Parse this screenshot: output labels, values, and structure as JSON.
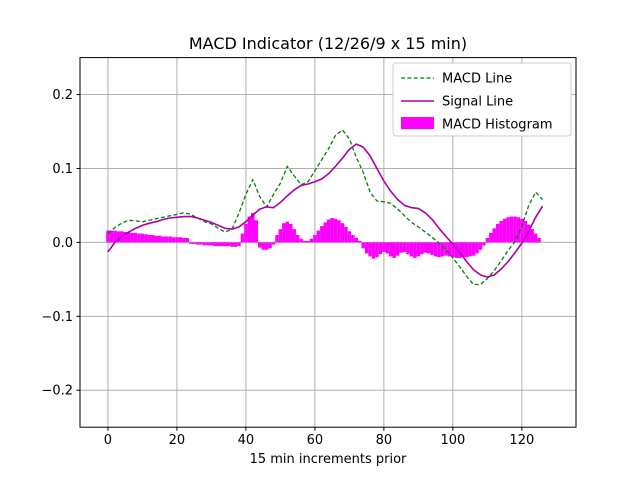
{
  "title": "MACD Indicator (12/26/9 x 15 min)",
  "xlabel": "15 min increments prior",
  "legend": {
    "items": [
      {
        "label": "MACD Line",
        "type": "dashed-line",
        "color": "#008000"
      },
      {
        "label": "Signal Line",
        "type": "solid-line",
        "color": "#aa00aa"
      },
      {
        "label": "MACD Histogram",
        "type": "patch",
        "color": "#ff00ff"
      }
    ]
  },
  "colors": {
    "macd_line": "#008000",
    "signal_line": "#aa00aa",
    "histogram": "#ff00ff",
    "grid": "#b0b0b0",
    "spine": "#000000",
    "background": "#ffffff",
    "legend_border": "#cccccc"
  },
  "chart_data": {
    "type": "line+bar",
    "title": "MACD Indicator (12/26/9 x 15 min)",
    "xlabel": "15 min increments prior",
    "ylabel": "",
    "grid": true,
    "legend_position": "upper right",
    "xlim": [
      -8.1,
      135.7
    ],
    "ylim": [
      -0.25,
      0.25
    ],
    "xticks": [
      0,
      20,
      40,
      60,
      80,
      100,
      120
    ],
    "yticks": [
      -0.2,
      -0.1,
      0.0,
      0.1,
      0.2
    ],
    "series": [
      {
        "name": "MACD Line",
        "style": "dashed",
        "color": "#008000",
        "x_start": 0,
        "x_step": 2,
        "values": [
          0.012,
          0.02,
          0.026,
          0.03,
          0.029,
          0.028,
          0.03,
          0.032,
          0.034,
          0.036,
          0.038,
          0.04,
          0.038,
          0.033,
          0.028,
          0.025,
          0.019,
          0.014,
          0.018,
          0.04,
          0.065,
          0.085,
          0.062,
          0.048,
          0.065,
          0.08,
          0.103,
          0.09,
          0.078,
          0.082,
          0.097,
          0.112,
          0.127,
          0.145,
          0.152,
          0.14,
          0.115,
          0.095,
          0.068,
          0.056,
          0.055,
          0.053,
          0.045,
          0.036,
          0.027,
          0.021,
          0.014,
          0.007,
          -0.001,
          -0.01,
          -0.021,
          -0.033,
          -0.046,
          -0.057,
          -0.057,
          -0.049,
          -0.038,
          -0.025,
          -0.011,
          0.001,
          0.022,
          0.05,
          0.068,
          0.058
        ]
      },
      {
        "name": "Signal Line",
        "style": "solid",
        "color": "#aa00aa",
        "x_start": 0,
        "x_step": 2,
        "values": [
          -0.013,
          0.0,
          0.008,
          0.014,
          0.019,
          0.023,
          0.026,
          0.028,
          0.031,
          0.033,
          0.034,
          0.035,
          0.035,
          0.033,
          0.03,
          0.027,
          0.023,
          0.019,
          0.018,
          0.021,
          0.028,
          0.037,
          0.045,
          0.048,
          0.047,
          0.054,
          0.063,
          0.071,
          0.077,
          0.079,
          0.082,
          0.086,
          0.093,
          0.103,
          0.114,
          0.126,
          0.133,
          0.129,
          0.117,
          0.1,
          0.083,
          0.069,
          0.058,
          0.05,
          0.047,
          0.046,
          0.04,
          0.031,
          0.019,
          0.008,
          -0.002,
          -0.014,
          -0.026,
          -0.037,
          -0.044,
          -0.047,
          -0.044,
          -0.036,
          -0.026,
          -0.014,
          -0.001,
          0.015,
          0.034,
          0.049
        ]
      }
    ],
    "histogram": {
      "name": "MACD Histogram",
      "color": "#ff00ff",
      "x_start": 0,
      "x_step": 1,
      "bar_width": 1,
      "values": [
        0.016,
        0.016,
        0.016,
        0.015,
        0.015,
        0.014,
        0.014,
        0.013,
        0.013,
        0.012,
        0.012,
        0.011,
        0.01,
        0.01,
        0.009,
        0.009,
        0.008,
        0.008,
        0.008,
        0.007,
        0.007,
        0.007,
        0.006,
        0.006,
        -0.002,
        -0.002,
        -0.003,
        -0.003,
        -0.004,
        -0.004,
        -0.004,
        -0.005,
        -0.005,
        -0.005,
        -0.005,
        -0.005,
        -0.006,
        -0.006,
        -0.005,
        0.012,
        0.025,
        0.035,
        0.04,
        0.03,
        -0.007,
        -0.01,
        -0.01,
        -0.008,
        -0.003,
        0.01,
        0.018,
        0.026,
        0.028,
        0.025,
        0.018,
        0.01,
        0.005,
        0.002,
        0.002,
        0.005,
        0.01,
        0.016,
        0.022,
        0.027,
        0.031,
        0.033,
        0.032,
        0.03,
        0.026,
        0.021,
        0.015,
        0.01,
        0.006,
        0.002,
        -0.008,
        -0.015,
        -0.019,
        -0.022,
        -0.02,
        -0.016,
        -0.013,
        -0.015,
        -0.019,
        -0.021,
        -0.018,
        -0.014,
        -0.013,
        -0.016,
        -0.019,
        -0.021,
        -0.019,
        -0.016,
        -0.014,
        -0.015,
        -0.017,
        -0.019,
        -0.02,
        -0.019,
        -0.018,
        -0.019,
        -0.02,
        -0.021,
        -0.021,
        -0.02,
        -0.02,
        -0.019,
        -0.018,
        -0.015,
        -0.01,
        -0.004,
        0.006,
        0.013,
        0.019,
        0.025,
        0.029,
        0.032,
        0.034,
        0.035,
        0.035,
        0.034,
        0.032,
        0.029,
        0.024,
        0.018,
        0.012,
        0.006
      ]
    }
  }
}
